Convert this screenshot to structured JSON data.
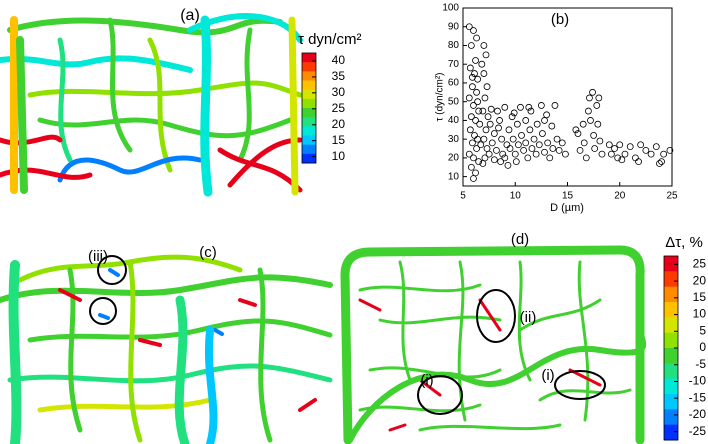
{
  "chart_data": {
    "type": "scatter",
    "title": "(b)",
    "xlabel": "D (µm)",
    "ylabel": "τ (dyn/cm²)",
    "x": [
      5.6,
      6.0,
      5.8,
      6.2,
      5.7,
      6.1,
      6.4,
      5.9,
      6.3,
      5.6,
      6.0,
      6.5,
      5.8,
      6.2,
      6.6,
      5.7,
      6.1,
      6.4,
      5.9,
      6.3,
      5.6,
      6.0,
      6.5,
      5.8,
      6.2,
      6.0,
      6.7,
      7.0,
      7.2,
      7.0,
      7.3,
      7.1,
      6.9,
      7.4,
      7.2,
      7.0,
      7.3,
      7.1,
      6.9,
      7.5,
      7.6,
      7.8,
      8.0,
      8.2,
      8.0,
      8.3,
      8.5,
      8.7,
      8.8,
      8.6,
      9.0,
      9.2,
      9.0,
      9.4,
      9.5,
      9.3,
      9.7,
      9.8,
      10.0,
      10.2,
      10.3,
      10.1,
      10.5,
      10.6,
      10.8,
      11.0,
      11.0,
      11.2,
      11.4,
      11.5,
      11.6,
      11.8,
      12.0,
      12.1,
      12.3,
      12.5,
      12.6,
      12.8,
      13.0,
      13.1,
      13.3,
      13.5,
      13.6,
      13.8,
      14.0,
      14.2,
      14.5,
      15.8,
      16.0,
      16.2,
      16.5,
      16.6,
      16.8,
      17.0,
      17.1,
      17.2,
      17.4,
      17.5,
      17.6,
      17.8,
      17.9,
      18.0,
      18.1,
      18.3,
      19.0,
      19.5,
      19.8,
      20.0,
      20.5,
      21.0,
      21.5,
      22.0,
      22.5,
      23.0,
      23.5,
      24.0,
      24.2,
      24.8,
      5.9,
      6.4,
      7.7,
      8.4,
      9.9,
      11.3,
      12.8,
      14.8,
      19.2,
      23.8,
      21.8,
      20.2,
      6.8,
      6.3
    ],
    "y": [
      90,
      88,
      80,
      72,
      68,
      65,
      62,
      58,
      55,
      52,
      48,
      45,
      42,
      40,
      38,
      35,
      32,
      30,
      28,
      25,
      22,
      20,
      18,
      15,
      12,
      9,
      27,
      80,
      75,
      65,
      58,
      52,
      45,
      42,
      35,
      30,
      25,
      20,
      17,
      22,
      38,
      28,
      33,
      24,
      19,
      45,
      40,
      30,
      22,
      18,
      47,
      27,
      20,
      35,
      25,
      16,
      42,
      30,
      22,
      38,
      27,
      18,
      47,
      32,
      24,
      40,
      28,
      20,
      35,
      45,
      25,
      30,
      22,
      38,
      27,
      48,
      33,
      23,
      43,
      28,
      20,
      37,
      25,
      48,
      30,
      24,
      28,
      35,
      33,
      24,
      38,
      28,
      20,
      45,
      52,
      40,
      55,
      32,
      25,
      48,
      38,
      52,
      29,
      22,
      27,
      25,
      20,
      27,
      22,
      26,
      20,
      27,
      24,
      22,
      26,
      18,
      22,
      24,
      63,
      50,
      46,
      36,
      44,
      47,
      40,
      22,
      22,
      17,
      18,
      19,
      70,
      84
    ],
    "xlim": [
      5,
      25
    ],
    "ylim": [
      5,
      100
    ],
    "xticks": [
      5,
      10,
      15,
      20,
      25
    ],
    "yticks": [
      10,
      20,
      30,
      40,
      50,
      60,
      70,
      80,
      90,
      100
    ],
    "color": "#000000"
  },
  "panel_a": {
    "label": "(a)",
    "colorbar": {
      "title": "τ dyn/cm²",
      "lim": [
        8,
        42.5
      ],
      "ticks": [
        40,
        35,
        30,
        25,
        20,
        15,
        10
      ],
      "colors": [
        "#e8001b",
        "#ff3a00",
        "#ff8c00",
        "#ffc000",
        "#d4e600",
        "#90e000",
        "#40d030",
        "#20e080",
        "#00e8d8",
        "#00c8ff",
        "#0080ff",
        "#0030ff"
      ]
    }
  },
  "panel_c": {
    "label": "(c)",
    "annotation": "(iii)"
  },
  "panel_d": {
    "label": "(d)",
    "annotations": [
      "(ii)",
      "(i)",
      "(i)"
    ],
    "colorbar": {
      "title": "Δτ, %",
      "lim": [
        -27.5,
        27.5
      ],
      "ticks": [
        25,
        20,
        15,
        10,
        5,
        0,
        -5,
        -10,
        -15,
        -20,
        -25
      ],
      "colors": [
        "#e8001b",
        "#ff3a00",
        "#ff8c00",
        "#ffc000",
        "#d4e600",
        "#90e000",
        "#40d030",
        "#20e080",
        "#00e8d8",
        "#00c8ff",
        "#0080ff",
        "#0030ff"
      ]
    }
  }
}
